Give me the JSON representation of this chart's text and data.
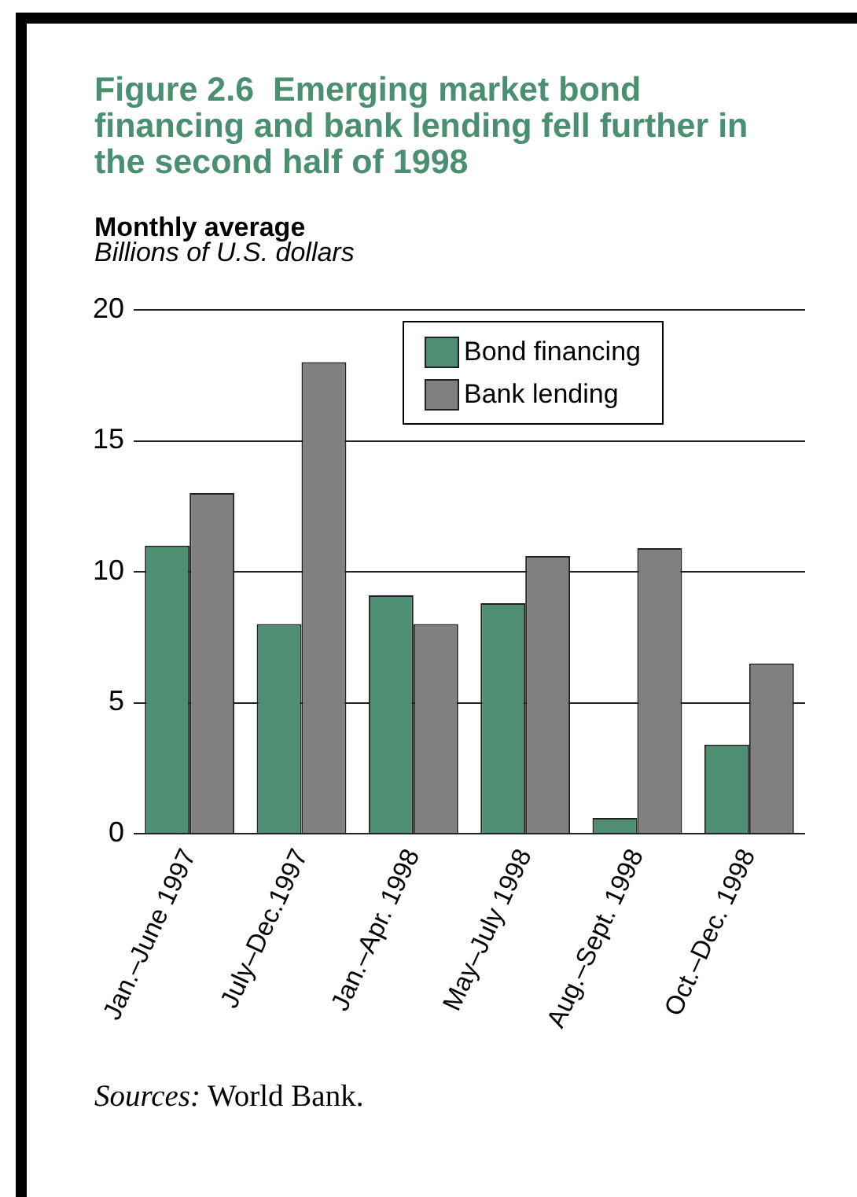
{
  "chart_data": {
    "type": "bar",
    "title": "Figure 2.6  Emerging market bond financing and bank lending fell further in the second half of 1998",
    "subtitle": "Monthly average",
    "ylabel": "Billions of U.S. dollars",
    "categories": [
      "Jan.–June 1997",
      "July–Dec.1997",
      "Jan.–Apr. 1998",
      "May–July 1998",
      "Aug.–Sept. 1998",
      "Oct.–Dec. 1998"
    ],
    "series": [
      {
        "name": "Bond financing",
        "color": "#4e8f74",
        "values": [
          11,
          8,
          9.1,
          8.8,
          0.6,
          3.4
        ]
      },
      {
        "name": "Bank lending",
        "color": "#808080",
        "values": [
          13,
          18,
          8,
          10.6,
          10.9,
          6.5
        ]
      }
    ],
    "ylim": [
      0,
      20
    ],
    "yticks": [
      0,
      5,
      10,
      15,
      20
    ],
    "grid": "y",
    "legend": "top right",
    "annotations": [
      "Sources: World Bank."
    ]
  }
}
